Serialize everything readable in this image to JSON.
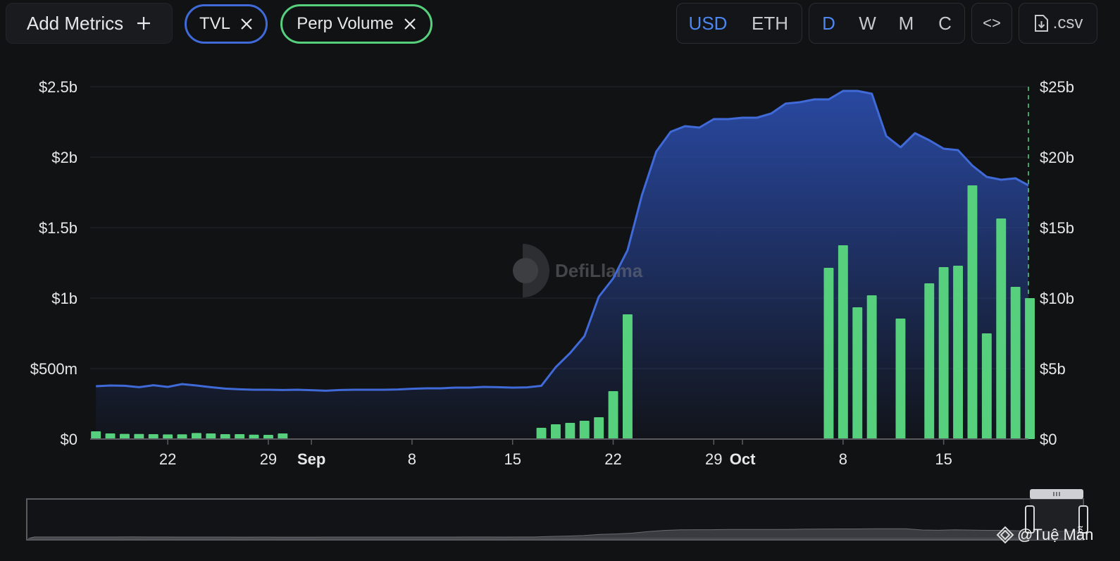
{
  "toolbar": {
    "add_metrics_label": "Add Metrics",
    "add_icon": "plus-icon",
    "chips": [
      {
        "label": "TVL",
        "color": "#3f6ad8"
      },
      {
        "label": "Perp Volume",
        "color": "#57d07e"
      }
    ],
    "currency_options": [
      "USD",
      "ETH"
    ],
    "currency_selected": "USD",
    "period_options": [
      "D",
      "W",
      "M",
      "C"
    ],
    "period_selected": "D",
    "embed_label": "<>",
    "csv_label": ".csv"
  },
  "watermark": {
    "text": "DefiLlama"
  },
  "credit": {
    "text": "@Tuệ Mẫn"
  },
  "colors": {
    "tvl": "#3f6ad8",
    "volume": "#57d07e",
    "background": "#111214",
    "grid": "#25262b"
  },
  "chart_data": {
    "type": "area",
    "x_tick_labels": [
      {
        "label": "22",
        "bold": false,
        "day": 22
      },
      {
        "label": "29",
        "bold": false,
        "day": 29
      },
      {
        "label": "Sep",
        "bold": true,
        "day": 32
      },
      {
        "label": "8",
        "bold": false,
        "day": 39
      },
      {
        "label": "15",
        "bold": false,
        "day": 46
      },
      {
        "label": "22",
        "bold": false,
        "day": 53
      },
      {
        "label": "29",
        "bold": false,
        "day": 60
      },
      {
        "label": "Oct",
        "bold": true,
        "day": 62
      },
      {
        "label": "8",
        "bold": false,
        "day": 69
      },
      {
        "label": "15",
        "bold": false,
        "day": 76
      }
    ],
    "x_range": [
      16.6,
      81.9
    ],
    "y_left_ticks": [
      "$0",
      "$500m",
      "$1b",
      "$1.5b",
      "$2b",
      "$2.5b"
    ],
    "y_left_range": [
      0,
      2500000000
    ],
    "y_right_ticks": [
      "$0",
      "$5b",
      "$10b",
      "$15b",
      "$20b",
      "$25b"
    ],
    "y_right_range": [
      0,
      25000000000
    ],
    "grid": true,
    "series": [
      {
        "name": "TVL",
        "axis": "left",
        "style": "area",
        "points": [
          [
            17,
            375000000
          ],
          [
            18,
            380000000
          ],
          [
            19,
            378000000
          ],
          [
            20,
            368000000
          ],
          [
            21,
            382000000
          ],
          [
            22,
            370000000
          ],
          [
            23,
            390000000
          ],
          [
            24,
            380000000
          ],
          [
            25,
            368000000
          ],
          [
            26,
            358000000
          ],
          [
            27,
            353000000
          ],
          [
            28,
            350000000
          ],
          [
            29,
            350000000
          ],
          [
            30,
            348000000
          ],
          [
            31,
            350000000
          ],
          [
            32,
            347000000
          ],
          [
            33,
            343000000
          ],
          [
            34,
            348000000
          ],
          [
            35,
            350000000
          ],
          [
            36,
            350000000
          ],
          [
            37,
            350000000
          ],
          [
            38,
            352000000
          ],
          [
            39,
            357000000
          ],
          [
            40,
            360000000
          ],
          [
            41,
            360000000
          ],
          [
            42,
            365000000
          ],
          [
            43,
            365000000
          ],
          [
            44,
            370000000
          ],
          [
            45,
            368000000
          ],
          [
            46,
            365000000
          ],
          [
            47,
            367000000
          ],
          [
            48,
            378000000
          ],
          [
            49,
            510000000
          ],
          [
            50,
            610000000
          ],
          [
            51,
            730000000
          ],
          [
            52,
            1010000000
          ],
          [
            53,
            1140000000
          ],
          [
            54,
            1340000000
          ],
          [
            55,
            1730000000
          ],
          [
            56,
            2040000000
          ],
          [
            57,
            2180000000
          ],
          [
            58,
            2220000000
          ],
          [
            59,
            2210000000
          ],
          [
            60,
            2270000000
          ],
          [
            61,
            2270000000
          ],
          [
            62,
            2280000000
          ],
          [
            63,
            2280000000
          ],
          [
            64,
            2310000000
          ],
          [
            65,
            2380000000
          ],
          [
            66,
            2390000000
          ],
          [
            67,
            2410000000
          ],
          [
            68,
            2410000000
          ],
          [
            69,
            2470000000
          ],
          [
            70,
            2470000000
          ],
          [
            71,
            2450000000
          ],
          [
            72,
            2150000000
          ],
          [
            73,
            2070000000
          ],
          [
            74,
            2170000000
          ],
          [
            75,
            2120000000
          ],
          [
            76,
            2060000000
          ],
          [
            77,
            2050000000
          ],
          [
            78,
            1940000000
          ],
          [
            79,
            1860000000
          ],
          [
            80,
            1840000000
          ],
          [
            81,
            1850000000
          ],
          [
            81.9,
            1800000000
          ]
        ]
      },
      {
        "name": "Perp Volume",
        "axis": "right",
        "style": "bar",
        "points": [
          [
            17,
            550000000
          ],
          [
            18,
            400000000
          ],
          [
            19,
            370000000
          ],
          [
            20,
            360000000
          ],
          [
            21,
            350000000
          ],
          [
            22,
            330000000
          ],
          [
            23,
            340000000
          ],
          [
            24,
            430000000
          ],
          [
            25,
            400000000
          ],
          [
            26,
            350000000
          ],
          [
            27,
            350000000
          ],
          [
            28,
            310000000
          ],
          [
            29,
            300000000
          ],
          [
            30,
            400000000
          ],
          [
            48,
            800000000
          ],
          [
            49,
            1050000000
          ],
          [
            50,
            1150000000
          ],
          [
            51,
            1300000000
          ],
          [
            52,
            1550000000
          ],
          [
            53,
            3400000000
          ],
          [
            54,
            8850000000
          ],
          [
            68,
            12150000000
          ],
          [
            69,
            13750000000
          ],
          [
            70,
            9350000000
          ],
          [
            71,
            10200000000
          ],
          [
            73,
            8550000000
          ],
          [
            75,
            11050000000
          ],
          [
            76,
            12200000000
          ],
          [
            77,
            12300000000
          ],
          [
            78,
            18000000000
          ],
          [
            79,
            7500000000
          ],
          [
            80,
            15650000000
          ],
          [
            81,
            10800000000
          ],
          [
            82,
            10000000000
          ]
        ]
      }
    ]
  }
}
